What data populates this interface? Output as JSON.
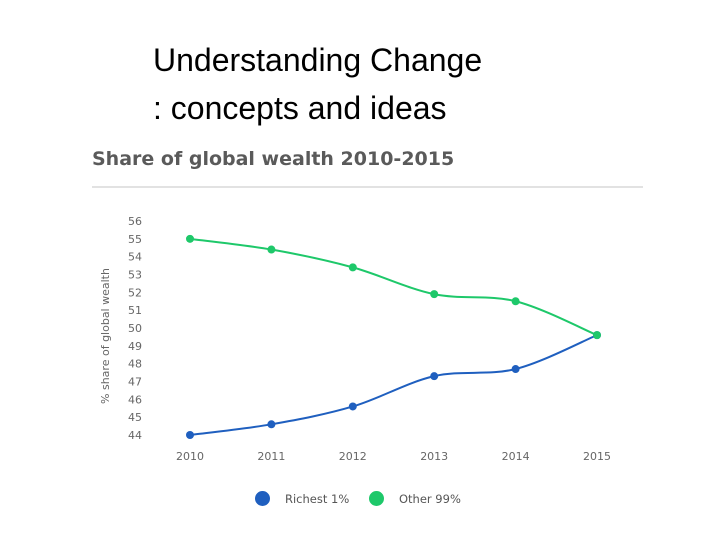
{
  "slide": {
    "title_line1": "Understanding Change",
    "title_line2": ": concepts and ideas"
  },
  "chart_data": {
    "type": "line",
    "title": "Share of global wealth 2010-2015",
    "xlabel": "",
    "ylabel": "% share of global wealth",
    "x": [
      "2010",
      "2011",
      "2012",
      "2013",
      "2014",
      "2015"
    ],
    "ylim": [
      44,
      56
    ],
    "yticks": [
      44,
      45,
      46,
      47,
      48,
      49,
      50,
      51,
      52,
      53,
      54,
      55,
      56
    ],
    "grid": false,
    "legend_position": "bottom",
    "series": [
      {
        "name": "Richest 1%",
        "color": "#1f5fbf",
        "values": [
          44.0,
          44.6,
          45.6,
          47.3,
          47.7,
          49.6
        ]
      },
      {
        "name": "Other 99%",
        "color": "#1ec86a",
        "values": [
          55.0,
          54.4,
          53.4,
          51.9,
          51.5,
          49.6
        ]
      }
    ]
  }
}
